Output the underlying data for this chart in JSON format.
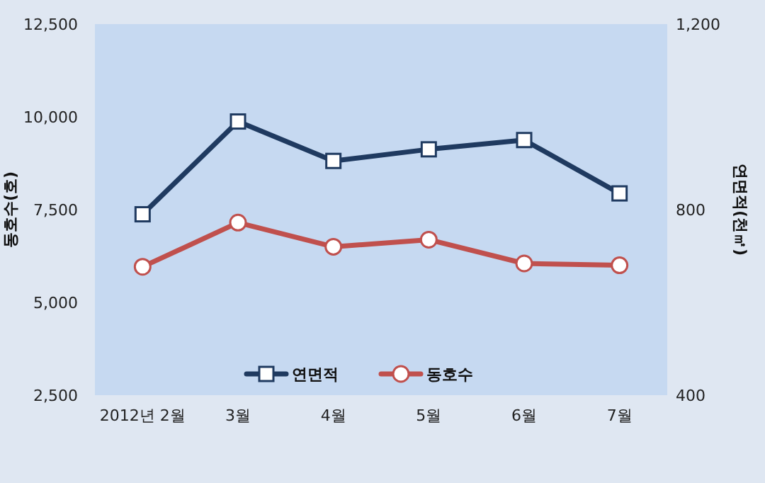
{
  "chart_data": {
    "type": "line",
    "ylabel": "동호수(호)",
    "y2label": "연면적(천㎡)",
    "categories": [
      "2012년 2월",
      "3월",
      "4월",
      "5월",
      "6월",
      "7월"
    ],
    "series": [
      {
        "name": "연면적",
        "color": "#1f3a60",
        "axis": "y2",
        "marker": "square",
        "values": [
          790,
          990,
          905,
          930,
          950,
          835
        ]
      },
      {
        "name": "동호수",
        "color": "#c0504d",
        "marker": "circle",
        "values": [
          5960,
          7150,
          6500,
          6690,
          6050,
          6000
        ]
      }
    ],
    "ylim": [
      2500,
      12500
    ],
    "yticks": [
      {
        "value": 2500,
        "label": "2,500"
      },
      {
        "value": 5000,
        "label": "5,000"
      },
      {
        "value": 7500,
        "label": "7,500"
      },
      {
        "value": 10000,
        "label": "10,000"
      },
      {
        "value": 12500,
        "label": "12,500"
      }
    ],
    "y2lim": [
      400,
      1200
    ],
    "y2ticks": [
      400,
      800,
      {
        "value": 1200,
        "label": "1,200"
      }
    ],
    "legend": "bottom",
    "grid": false,
    "line_style": "solid"
  }
}
